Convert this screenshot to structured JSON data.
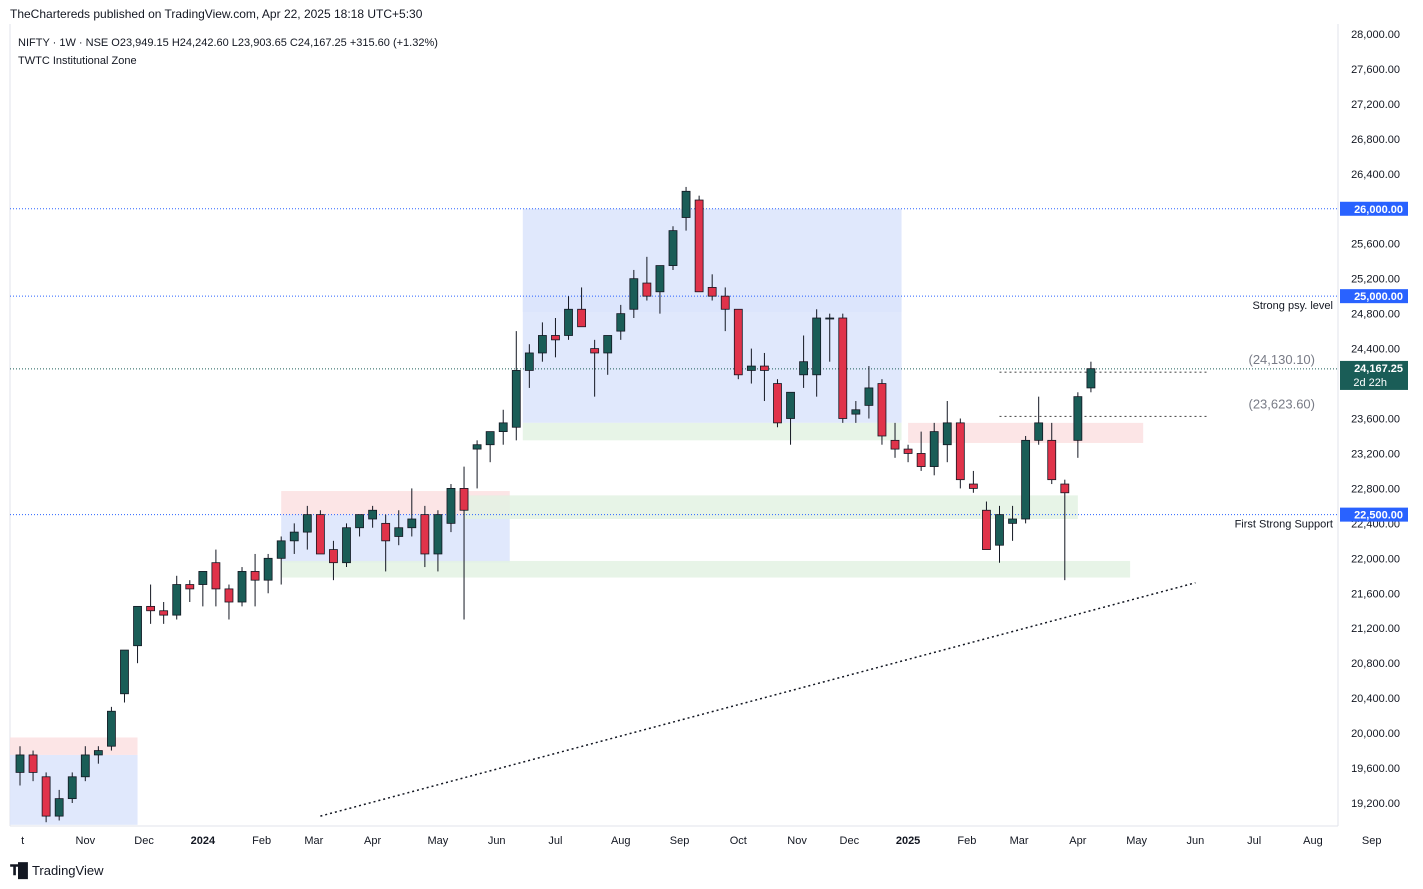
{
  "header": {
    "publisher": "TheChartereds published on TradingView.com, Apr 22, 2025 18:18 UTC+5:30"
  },
  "legend": {
    "symbol_line": "NIFTY · 1W · NSE  O23,949.15  H24,242.60  L23,903.65  C24,167.25  +315.60 (+1.32%)",
    "indicator": "TWTC Institutional Zone"
  },
  "footer": {
    "brand": "TradingView"
  },
  "colors": {
    "up": "#1a5d57",
    "down": "#e0334a",
    "level_line": "#2962ff",
    "blue_zone": "#dbe4fb",
    "green_zone": "#e3f2e3",
    "red_zone": "#fbe0e2"
  },
  "chart_data": {
    "type": "candlestick",
    "ylim": [
      18900,
      28000
    ],
    "x_axis_labels": [
      {
        "label": "t",
        "week": 0.2
      },
      {
        "label": "Nov",
        "week": 5
      },
      {
        "label": "Dec",
        "week": 9.5
      },
      {
        "label": "2024",
        "week": 14
      },
      {
        "label": "Feb",
        "week": 18.5
      },
      {
        "label": "Mar",
        "week": 22.5
      },
      {
        "label": "Apr",
        "week": 27
      },
      {
        "label": "May",
        "week": 32
      },
      {
        "label": "Jun",
        "week": 36.5
      },
      {
        "label": "Jul",
        "week": 41
      },
      {
        "label": "Aug",
        "week": 46
      },
      {
        "label": "Sep",
        "week": 50.5
      },
      {
        "label": "Oct",
        "week": 55
      },
      {
        "label": "Nov",
        "week": 59.5
      },
      {
        "label": "Dec",
        "week": 63.5
      },
      {
        "label": "2025",
        "week": 68
      },
      {
        "label": "Feb",
        "week": 72.5
      },
      {
        "label": "Mar",
        "week": 76.5
      },
      {
        "label": "Apr",
        "week": 81
      },
      {
        "label": "May",
        "week": 85.5
      },
      {
        "label": "Jun",
        "week": 90
      },
      {
        "label": "Jul",
        "week": 94.5
      },
      {
        "label": "Aug",
        "week": 99
      },
      {
        "label": "Sep",
        "week": 103.5
      }
    ],
    "y_ticks": [
      "28,000.00",
      "27,600.00",
      "27,200.00",
      "26,800.00",
      "26,400.00",
      "26,000.00",
      "25,600.00",
      "25,200.00",
      "24,800.00",
      "24,400.00",
      "24,000.00",
      "23,600.00",
      "23,200.00",
      "22,800.00",
      "22,400.00",
      "22,000.00",
      "21,600.00",
      "21,200.00",
      "20,800.00",
      "20,400.00",
      "20,000.00",
      "19,600.00",
      "19,200.00"
    ],
    "y_tick_values": [
      28000,
      27600,
      27200,
      26800,
      26400,
      26000,
      25600,
      25200,
      24800,
      24400,
      24000,
      23600,
      23200,
      22800,
      22400,
      22000,
      21600,
      21200,
      20800,
      20400,
      20000,
      19600,
      19200
    ],
    "levels": [
      {
        "value": 26000,
        "label": "26,000.00"
      },
      {
        "value": 25000,
        "label": "25,000.00",
        "note": "Strong psy. level"
      },
      {
        "value": 22500,
        "label": "22,500.00",
        "note": "First Strong Support"
      }
    ],
    "last_price": {
      "value": 24167.25,
      "label": "24,167.25",
      "countdown": "2d 22h"
    },
    "dotted_levels": [
      {
        "value": 24130.1,
        "label": "(24,130.10)",
        "from_week": 75,
        "to_week": 91
      },
      {
        "value": 23623.6,
        "label": "(23,623.60)",
        "from_week": 75,
        "to_week": 91
      }
    ],
    "zones": [
      {
        "type": "blue",
        "week_from": -1,
        "week_to": 9,
        "low": 18950,
        "high": 19750
      },
      {
        "type": "red",
        "week_from": -1,
        "week_to": 9,
        "low": 19750,
        "high": 19950
      },
      {
        "type": "blue",
        "week_from": 20,
        "week_to": 37.5,
        "low": 21950,
        "high": 22500
      },
      {
        "type": "red",
        "week_from": 20,
        "week_to": 37.5,
        "low": 22500,
        "high": 22770
      },
      {
        "type": "blue",
        "week_from": 38.5,
        "week_to": 67.5,
        "low": 23550,
        "high": 26000
      },
      {
        "type": "blue",
        "week_from": 38.5,
        "week_to": 67.5,
        "low": 24820,
        "high": 25000
      },
      {
        "type": "green",
        "week_from": 38.5,
        "week_to": 67.5,
        "low": 23350,
        "high": 23550
      },
      {
        "type": "green",
        "week_from": 20,
        "week_to": 85,
        "low": 21780,
        "high": 21970
      },
      {
        "type": "green",
        "week_from": 34,
        "week_to": 81,
        "low": 22450,
        "high": 22720
      },
      {
        "type": "red",
        "week_from": 68,
        "week_to": 86,
        "low": 23320,
        "high": 23550
      }
    ],
    "trendline": {
      "from": {
        "week": 23,
        "value": 19050
      },
      "to": {
        "week": 90,
        "value": 21720
      }
    },
    "candles": [
      [
        19550,
        19850,
        19400,
        19750
      ],
      [
        19750,
        19800,
        19450,
        19550
      ],
      [
        19500,
        19550,
        18980,
        19050
      ],
      [
        19050,
        19350,
        19000,
        19250
      ],
      [
        19250,
        19550,
        19200,
        19500
      ],
      [
        19500,
        19850,
        19450,
        19750
      ],
      [
        19750,
        19850,
        19650,
        19800
      ],
      [
        19850,
        20300,
        19800,
        20250
      ],
      [
        20450,
        20900,
        20350,
        20950
      ],
      [
        21000,
        21450,
        20800,
        21450
      ],
      [
        21450,
        21700,
        21250,
        21400
      ],
      [
        21400,
        21500,
        21250,
        21350
      ],
      [
        21350,
        21800,
        21300,
        21700
      ],
      [
        21700,
        21750,
        21500,
        21650
      ],
      [
        21700,
        21850,
        21450,
        21850
      ],
      [
        21950,
        22100,
        21450,
        21650
      ],
      [
        21650,
        21700,
        21300,
        21500
      ],
      [
        21500,
        21900,
        21450,
        21850
      ],
      [
        21850,
        22050,
        21450,
        21750
      ],
      [
        21750,
        22050,
        21600,
        22000
      ],
      [
        22000,
        22250,
        21700,
        22200
      ],
      [
        22200,
        22400,
        22050,
        22300
      ],
      [
        22300,
        22600,
        22100,
        22500
      ],
      [
        22500,
        22550,
        22050,
        22050
      ],
      [
        22100,
        22200,
        21750,
        21950
      ],
      [
        21950,
        22400,
        21900,
        22350
      ],
      [
        22350,
        22500,
        22250,
        22500
      ],
      [
        22450,
        22600,
        22350,
        22550
      ],
      [
        22400,
        22500,
        21850,
        22200
      ],
      [
        22250,
        22550,
        22150,
        22350
      ],
      [
        22350,
        22800,
        22250,
        22450
      ],
      [
        22500,
        22600,
        21900,
        22050
      ],
      [
        22050,
        22550,
        21850,
        22500
      ],
      [
        22400,
        22850,
        22300,
        22800
      ],
      [
        22800,
        23050,
        21300,
        22550
      ],
      [
        23250,
        23350,
        22800,
        23300
      ],
      [
        23300,
        23450,
        23100,
        23450
      ],
      [
        23450,
        23700,
        23300,
        23550
      ],
      [
        23500,
        24600,
        23350,
        24150
      ],
      [
        24150,
        24450,
        23950,
        24350
      ],
      [
        24350,
        24700,
        24250,
        24550
      ],
      [
        24550,
        24750,
        24300,
        24500
      ],
      [
        24550,
        25000,
        24500,
        24850
      ],
      [
        24850,
        25100,
        24700,
        24650
      ],
      [
        24400,
        24500,
        23850,
        24350
      ],
      [
        24350,
        24550,
        24100,
        24550
      ],
      [
        24600,
        24900,
        24500,
        24800
      ],
      [
        24850,
        25300,
        24750,
        25200
      ],
      [
        25150,
        25450,
        24950,
        25000
      ],
      [
        25050,
        25350,
        24800,
        25350
      ],
      [
        25350,
        25800,
        25300,
        25750
      ],
      [
        25900,
        26250,
        25750,
        26200
      ],
      [
        26100,
        26150,
        25050,
        25050
      ],
      [
        25100,
        25250,
        24950,
        25000
      ],
      [
        25000,
        25100,
        24600,
        24850
      ],
      [
        24850,
        24850,
        24050,
        24100
      ],
      [
        24150,
        24400,
        24000,
        24200
      ],
      [
        24200,
        24350,
        23800,
        24150
      ],
      [
        24000,
        24050,
        23500,
        23550
      ],
      [
        23600,
        23900,
        23300,
        23900
      ],
      [
        24100,
        24550,
        23950,
        24250
      ],
      [
        24100,
        24850,
        23850,
        24750
      ],
      [
        24750,
        24800,
        24250,
        24750
      ],
      [
        24750,
        24800,
        23550,
        23600
      ],
      [
        23650,
        23800,
        23550,
        23700
      ],
      [
        23750,
        24200,
        23600,
        23950
      ],
      [
        24000,
        24050,
        23300,
        23400
      ],
      [
        23350,
        23550,
        23150,
        23250
      ],
      [
        23250,
        23300,
        23100,
        23200
      ],
      [
        23200,
        23450,
        23000,
        23050
      ],
      [
        23050,
        23550,
        22950,
        23450
      ],
      [
        23300,
        23800,
        23100,
        23550
      ],
      [
        23550,
        23600,
        22800,
        22900
      ],
      [
        22850,
        23000,
        22750,
        22800
      ],
      [
        22550,
        22650,
        22100,
        22100
      ],
      [
        22150,
        22600,
        21950,
        22500
      ],
      [
        22400,
        22600,
        22200,
        22450
      ],
      [
        22450,
        23400,
        22400,
        23350
      ],
      [
        23350,
        23850,
        23300,
        23550
      ],
      [
        23350,
        23550,
        22850,
        22900
      ],
      [
        22850,
        22900,
        21750,
        22750
      ],
      [
        23350,
        23900,
        23150,
        23850
      ],
      [
        23950,
        24250,
        23900,
        24170
      ]
    ]
  }
}
